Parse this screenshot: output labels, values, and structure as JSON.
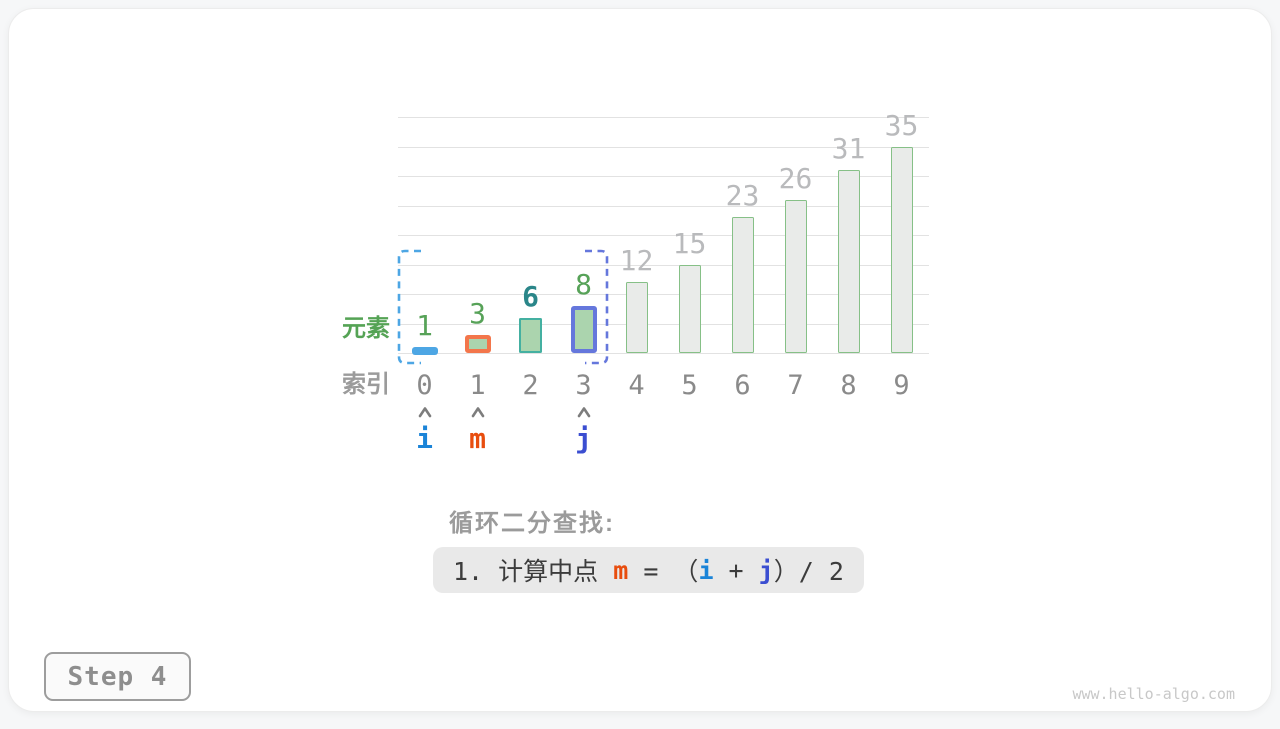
{
  "page": {
    "step_badge": "Step 4",
    "watermark": "www.hello-algo.com"
  },
  "chart_data": {
    "type": "bar",
    "categories": [
      "0",
      "1",
      "2",
      "3",
      "4",
      "5",
      "6",
      "7",
      "8",
      "9"
    ],
    "values": [
      1,
      3,
      6,
      8,
      12,
      15,
      23,
      26,
      31,
      35
    ],
    "xlabel": "索引",
    "ylabel": "元素",
    "ylim": [
      0,
      40
    ],
    "gridline_step": 5,
    "grid": true,
    "legend_position": "none",
    "annotations": {
      "search_range_from_index": 0,
      "search_range_to_index": 3,
      "highlighted_value_index": 2
    },
    "colors": {
      "bar_fill_active": "#abd4ae",
      "bar_border_active": "#44b0a1",
      "bar_fill_inactive": "#e9ebe9",
      "bar_border_inactive": "#86c087",
      "value_label_active": "#57a258",
      "value_label_target": "#2a8689",
      "value_label_inactive": "#b9babc",
      "index_label": "#8a8a8a",
      "axis_label_x": "#9b9b9b",
      "axis_label_y": "#55a355",
      "gridline": "#e2e2e2",
      "caret": "#7d7d7d"
    }
  },
  "pointers": [
    {
      "label": "i",
      "index": 0,
      "color": "#1b84d8",
      "bar_border": "#4da6e4"
    },
    {
      "label": "m",
      "index": 1,
      "color": "#e84d0e",
      "bar_border": "#f3764b"
    },
    {
      "label": "j",
      "index": 3,
      "color": "#3b4ed1",
      "bar_border": "#6577dc"
    }
  ],
  "brackets": {
    "left_color": "#4da6e4",
    "right_color": "#6577dc"
  },
  "caption": {
    "title": "循环二分查找:",
    "formula_step": [
      {
        "text": "1. 计算中点 "
      },
      {
        "text": "m",
        "color": "#e84d0e",
        "bold": true
      },
      {
        "text": " = （"
      },
      {
        "text": "i",
        "color": "#1b84d8",
        "bold": true
      },
      {
        "text": " + "
      },
      {
        "text": "j",
        "color": "#3b4ed1",
        "bold": true
      },
      {
        "text": "）/ 2"
      }
    ],
    "text_color": "#3c3c3c"
  }
}
